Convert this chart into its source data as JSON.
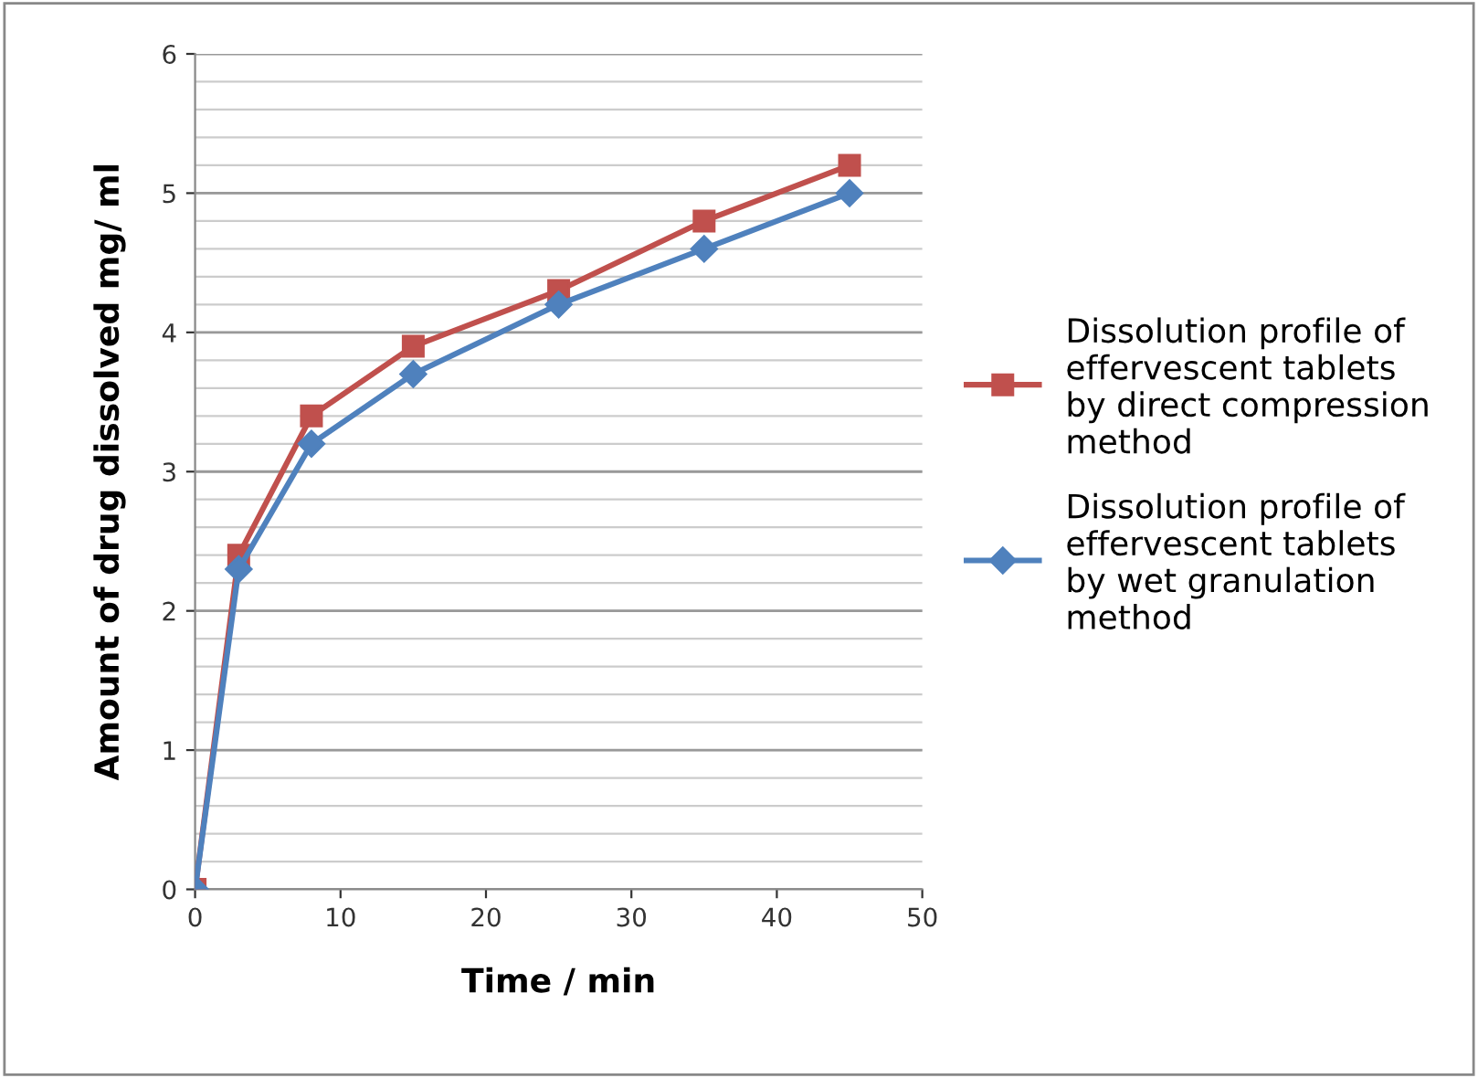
{
  "chart_data": {
    "type": "line",
    "xlabel": "Time / min",
    "ylabel": "Amount of drug dissolved mg/ ml",
    "x": [
      0,
      3,
      8,
      15,
      25,
      35,
      45
    ],
    "series": [
      {
        "name": "Dissolution profile of effervescent tablets by direct compression method",
        "color": "#c0504d",
        "marker": "square",
        "values": [
          0,
          2.4,
          3.4,
          3.9,
          4.3,
          4.8,
          5.2
        ]
      },
      {
        "name": "Dissolution profile of effervescent tablets by wet granulation method",
        "color": "#4f81bd",
        "marker": "diamond",
        "values": [
          0,
          2.3,
          3.2,
          3.7,
          4.2,
          4.6,
          5.0
        ]
      }
    ],
    "xlim": [
      0,
      50
    ],
    "xticks": [
      0,
      10,
      20,
      30,
      40,
      50
    ],
    "ylim": [
      0,
      6
    ],
    "yticks": [
      0,
      1,
      2,
      3,
      4,
      5,
      6
    ],
    "grid": "y",
    "legend": "right",
    "line_style": "solid"
  }
}
